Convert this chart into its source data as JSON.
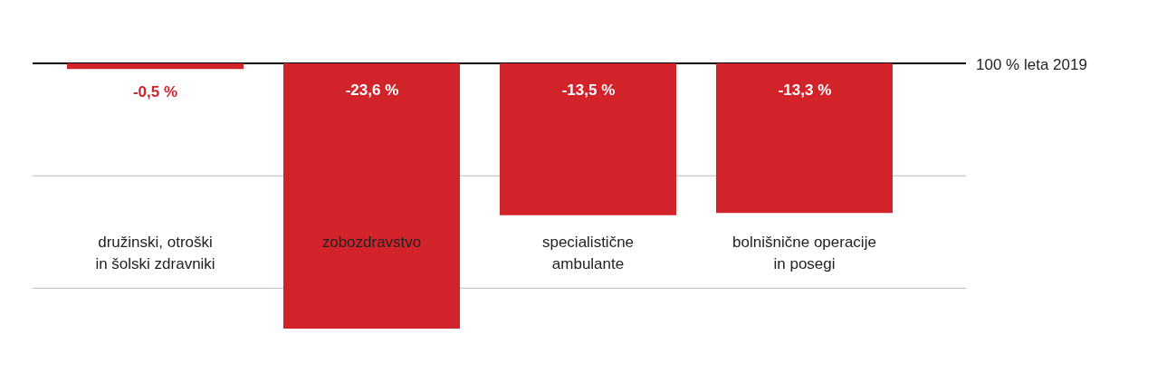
{
  "chart_data": {
    "type": "bar",
    "categories": [
      "družinski, otroški\nin šolski zdravniki",
      "zobozdravstvo",
      "specialistične\nambulante",
      "bolnišnične operacije\nin posegi"
    ],
    "values": [
      -0.5,
      -23.6,
      -13.5,
      -13.3
    ],
    "value_labels": [
      "-0,5 %",
      "-23,6 %",
      "-13,5 %",
      "-13,3 %"
    ],
    "color": "#d2232a",
    "ref_lines": [
      {
        "axis": "y",
        "value": 0,
        "label": "100 % leta 2019",
        "color": "#000000"
      },
      {
        "axis": "y",
        "value": -10,
        "label": null,
        "color": "#bbbbbb"
      },
      {
        "axis": "y",
        "value": -20,
        "label": null,
        "color": "#bbbbbb"
      }
    ],
    "legend": false
  }
}
